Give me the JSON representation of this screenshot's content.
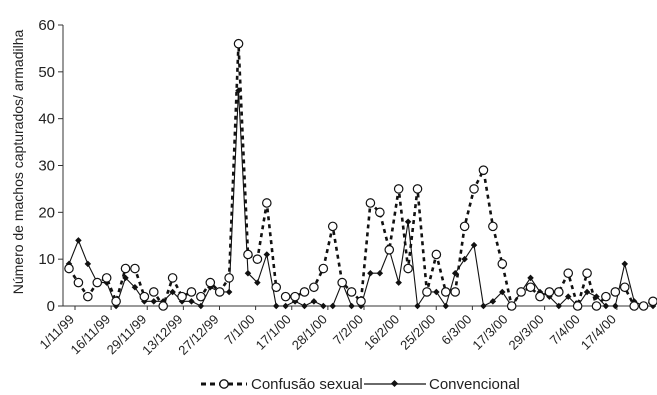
{
  "chart_data": {
    "type": "line",
    "title": "",
    "xlabel": "",
    "ylabel": "Número de machos capturados/ armadilha",
    "ylim": [
      0,
      60
    ],
    "yticks": [
      0,
      10,
      20,
      30,
      40,
      50,
      60
    ],
    "grid": false,
    "legend_position": "bottom",
    "x_tick_labels": [
      "1/11/99",
      "16/11/99",
      "29/11/99",
      "13/12/99",
      "27/12/99",
      "7/1/00",
      "17/1/00",
      "28/1/00",
      "7/2/00",
      "16/2/00",
      "25/2/00",
      "6/3/00",
      "17/3/00",
      "29/3/00",
      "7/4/00",
      "17/4/00"
    ],
    "series": [
      {
        "name": "Confusão sexual",
        "style": "dashed-circle",
        "color": "#111111",
        "values": [
          8,
          5,
          2,
          5,
          6,
          1,
          8,
          8,
          2,
          3,
          0,
          6,
          2,
          3,
          2,
          5,
          3,
          6,
          56,
          11,
          10,
          22,
          4,
          2,
          2,
          3,
          4,
          8,
          17,
          5,
          3,
          1,
          22,
          20,
          12,
          25,
          8,
          25,
          3,
          11,
          3,
          3,
          17,
          25,
          29,
          17,
          9,
          0,
          3,
          4,
          2,
          3,
          3,
          7,
          0,
          7,
          0,
          2,
          3,
          4,
          0,
          0,
          1
        ]
      },
      {
        "name": "Convencional",
        "style": "solid-diamond",
        "color": "#111111",
        "values": [
          9,
          14,
          9,
          5,
          5,
          0,
          6,
          4,
          1,
          1,
          1,
          3,
          1,
          1,
          0,
          4,
          3,
          3,
          46,
          7,
          5,
          11,
          0,
          0,
          1,
          0,
          1,
          0,
          0,
          5,
          0,
          0,
          7,
          7,
          12,
          5,
          18,
          0,
          3,
          3,
          0,
          7,
          10,
          13,
          0,
          1,
          3,
          0,
          3,
          6,
          3,
          2,
          0,
          2,
          0,
          3,
          2,
          0,
          0,
          9,
          1,
          0,
          0
        ]
      }
    ]
  }
}
